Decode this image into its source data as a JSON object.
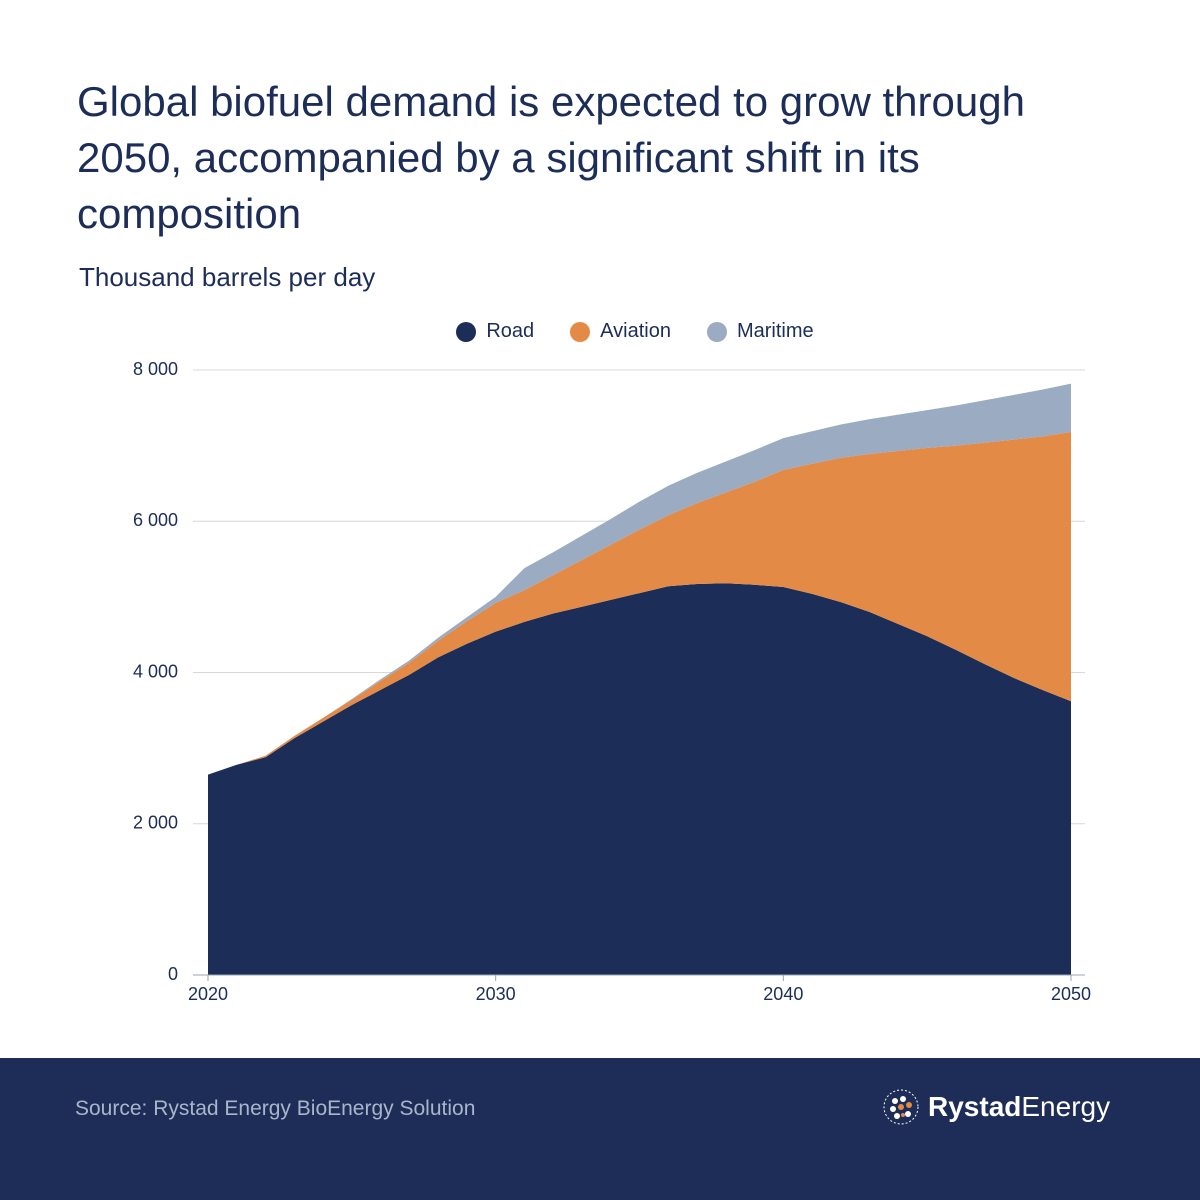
{
  "chart_data": {
    "type": "stacked_area",
    "title": "Global biofuel demand is expected to grow through 2050, accompanied by a significant shift in its composition",
    "subtitle": "Thousand barrels per day",
    "x": [
      2020,
      2021,
      2022,
      2023,
      2024,
      2025,
      2026,
      2027,
      2028,
      2029,
      2030,
      2031,
      2032,
      2033,
      2034,
      2035,
      2036,
      2037,
      2038,
      2039,
      2040,
      2041,
      2042,
      2043,
      2044,
      2045,
      2046,
      2047,
      2048,
      2049,
      2050
    ],
    "series": [
      {
        "name": "Road",
        "color": "#1c2d58",
        "values": [
          2650,
          2780,
          2880,
          3130,
          3350,
          3570,
          3770,
          3970,
          4200,
          4380,
          4540,
          4670,
          4780,
          4870,
          4960,
          5050,
          5140,
          5170,
          5180,
          5160,
          5130,
          5040,
          4930,
          4800,
          4640,
          4480,
          4300,
          4110,
          3930,
          3770,
          3620
        ]
      },
      {
        "name": "Aviation",
        "color": "#e38a47",
        "values": [
          0,
          0,
          20,
          30,
          50,
          70,
          120,
          160,
          220,
          300,
          380,
          420,
          510,
          620,
          730,
          840,
          940,
          1070,
          1200,
          1360,
          1550,
          1720,
          1910,
          2090,
          2290,
          2490,
          2700,
          2930,
          3150,
          3350,
          3560
        ]
      },
      {
        "name": "Maritime",
        "color": "#9aabc2",
        "values": [
          0,
          0,
          0,
          0,
          0,
          10,
          20,
          30,
          40,
          50,
          80,
          290,
          300,
          320,
          340,
          370,
          390,
          400,
          410,
          420,
          420,
          430,
          440,
          460,
          480,
          500,
          530,
          560,
          590,
          620,
          640
        ]
      }
    ],
    "xlim": [
      2020,
      2050
    ],
    "xticks": [
      2020,
      2030,
      2040,
      2050
    ],
    "ylim": [
      0,
      8000
    ],
    "yticks": [
      0,
      {
        "value": 2000,
        "label": "2 000"
      },
      {
        "value": 4000,
        "label": "4 000"
      },
      {
        "value": 6000,
        "label": "6 000"
      },
      {
        "value": 8000,
        "label": "8 000"
      }
    ],
    "grid": true
  },
  "footer": {
    "source": "Source: Rystad Energy BioEnergy Solution",
    "logo_bold": "Rystad",
    "logo_regular": "Energy"
  }
}
